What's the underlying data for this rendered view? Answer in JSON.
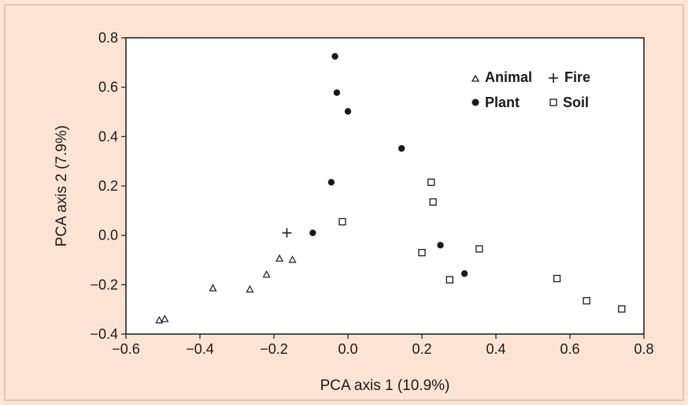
{
  "chart_data": {
    "type": "scatter",
    "title": "",
    "xlabel": "PCA axis 1 (10.9%)",
    "ylabel": "PCA axis 2 (7.9%)",
    "xlim": [
      -0.6,
      0.8
    ],
    "ylim": [
      -0.4,
      0.8
    ],
    "xticks": [
      "−0.6",
      "−0.4",
      "−0.2",
      "0.0",
      "0.2",
      "0.4",
      "0.6",
      "0.8"
    ],
    "yticks": [
      "0.8",
      "0.6",
      "0.4",
      "0.2",
      "0.0",
      "−0.2",
      "−0.4"
    ],
    "grid": false,
    "legend_position": "top-right",
    "series": [
      {
        "name": "Animal",
        "marker": "triangle-open",
        "points": [
          [
            -0.51,
            -0.345
          ],
          [
            -0.495,
            -0.34
          ],
          [
            -0.365,
            -0.215
          ],
          [
            -0.265,
            -0.22
          ],
          [
            -0.22,
            -0.16
          ],
          [
            -0.185,
            -0.095
          ],
          [
            -0.15,
            -0.1
          ]
        ]
      },
      {
        "name": "Fire",
        "marker": "plus",
        "points": [
          [
            -0.165,
            0.01
          ]
        ]
      },
      {
        "name": "Plant",
        "marker": "circle-filled",
        "points": [
          [
            -0.035,
            0.725
          ],
          [
            -0.03,
            0.578
          ],
          [
            0.0,
            0.502
          ],
          [
            0.145,
            0.352
          ],
          [
            -0.045,
            0.215
          ],
          [
            -0.095,
            0.01
          ],
          [
            0.25,
            -0.04
          ],
          [
            0.315,
            -0.155
          ]
        ]
      },
      {
        "name": "Soil",
        "marker": "square-open",
        "points": [
          [
            0.225,
            0.215
          ],
          [
            0.23,
            0.135
          ],
          [
            -0.015,
            0.055
          ],
          [
            0.2,
            -0.07
          ],
          [
            0.355,
            -0.055
          ],
          [
            0.275,
            -0.18
          ],
          [
            0.565,
            -0.175
          ],
          [
            0.645,
            -0.265
          ],
          [
            0.74,
            -0.298
          ]
        ]
      }
    ]
  }
}
